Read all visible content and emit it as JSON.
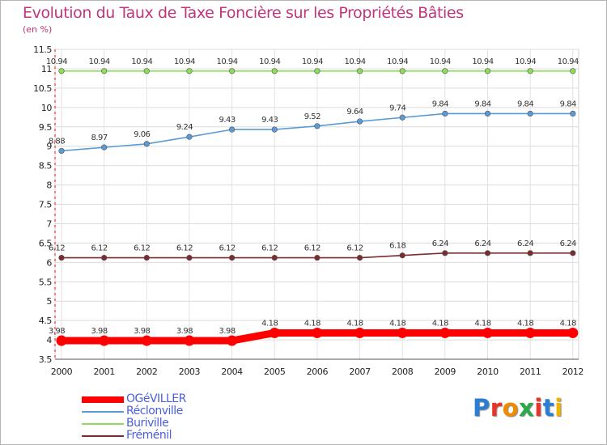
{
  "title": "Evolution du Taux de Taxe Foncière sur les Propriétés Bâties",
  "subtitle": "(en %)",
  "logo": {
    "text": "Proxiti",
    "letters": [
      "P",
      "r",
      "o",
      "x",
      "i",
      "t",
      "i"
    ],
    "colors": [
      "#2a7fd4",
      "#e8332a",
      "#f08a00",
      "#2aa84a",
      "#e8332a",
      "#2a7fd4",
      "#f0b400"
    ]
  },
  "chart_data": {
    "type": "line",
    "title": "Evolution du Taux de Taxe Foncière sur les Propriétés Bâties",
    "ylabel": "(en %)",
    "x": [
      "2000",
      "2001",
      "2002",
      "2003",
      "2004",
      "2005",
      "2006",
      "2007",
      "2008",
      "2009",
      "2010",
      "2011",
      "2012"
    ],
    "ylim": [
      3.5,
      11.5
    ],
    "yticks": [
      3.5,
      4,
      4.5,
      5,
      5.5,
      6,
      6.5,
      7,
      7.5,
      8,
      8.5,
      9,
      9.5,
      10,
      10.5,
      11,
      11.5
    ],
    "ytick_labels": [
      "3.5",
      "4",
      "4.5",
      "5",
      "5.5",
      "6",
      "6.5",
      "7",
      "7.5",
      "8",
      "8.5",
      "9",
      "9.5",
      "10",
      "10.5",
      "11",
      "11.5"
    ],
    "grid": true,
    "legend_position": "bottom-left",
    "series": [
      {
        "name": "OGéVILLER",
        "color": "#ff0000",
        "values": [
          3.98,
          3.98,
          3.98,
          3.98,
          3.98,
          4.18,
          4.18,
          4.18,
          4.18,
          4.18,
          4.18,
          4.18,
          4.18
        ],
        "labels": [
          "3.98",
          "3.98",
          "3.98",
          "3.98",
          "3.98",
          "4.18",
          "4.18",
          "4.18",
          "4.18",
          "4.18",
          "4.18",
          "4.18",
          "4.18"
        ]
      },
      {
        "name": "Réclonville",
        "color": "#5b9bd5",
        "values": [
          8.88,
          8.97,
          9.06,
          9.24,
          9.43,
          9.43,
          9.52,
          9.64,
          9.74,
          9.84,
          9.84,
          9.84,
          9.84
        ],
        "labels": [
          "8.88",
          "8.97",
          "9.06",
          "9.24",
          "9.43",
          "9.43",
          "9.52",
          "9.64",
          "9.74",
          "9.84",
          "9.84",
          "9.84",
          "9.84"
        ]
      },
      {
        "name": "Buriville",
        "color": "#8fdc5a",
        "values": [
          10.94,
          10.94,
          10.94,
          10.94,
          10.94,
          10.94,
          10.94,
          10.94,
          10.94,
          10.94,
          10.94,
          10.94,
          10.94
        ],
        "labels": [
          "10.94",
          "10.94",
          "10.94",
          "10.94",
          "10.94",
          "10.94",
          "10.94",
          "10.94",
          "10.94",
          "10.94",
          "10.94",
          "10.94",
          "10.94"
        ]
      },
      {
        "name": "Fréménil",
        "color": "#7b2d2d",
        "values": [
          6.12,
          6.12,
          6.12,
          6.12,
          6.12,
          6.12,
          6.12,
          6.12,
          6.18,
          6.24,
          6.24,
          6.24,
          6.24
        ],
        "labels": [
          "6.12",
          "6.12",
          "6.12",
          "6.12",
          "6.12",
          "6.12",
          "6.12",
          "6.12",
          "6.18",
          "6.24",
          "6.24",
          "6.24",
          "6.24"
        ]
      }
    ]
  }
}
